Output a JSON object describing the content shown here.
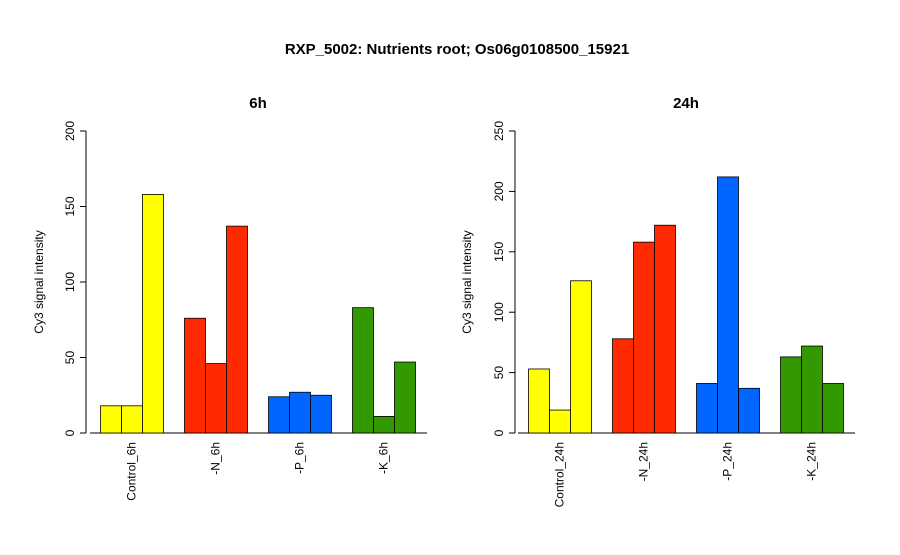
{
  "title": "RXP_5002: Nutrients root; Os06g0108500_15921",
  "chart_data": [
    {
      "type": "bar",
      "title": "6h",
      "ylabel": "Cy3 signal intensity",
      "ylim": [
        0,
        200
      ],
      "yticks": [
        0,
        50,
        100,
        150,
        200
      ],
      "categories": [
        "Control_6h",
        "-N_6h",
        "-P_6h",
        "-K_6h"
      ],
      "colors": [
        "#FFFF00",
        "#FF2A00",
        "#0066FF",
        "#339900"
      ],
      "values": [
        [
          18,
          18,
          158
        ],
        [
          76,
          46,
          137
        ],
        [
          24,
          27,
          25
        ],
        [
          83,
          11,
          47
        ]
      ]
    },
    {
      "type": "bar",
      "title": "24h",
      "ylabel": "Cy3 signal intensity",
      "ylim": [
        0,
        250
      ],
      "yticks": [
        0,
        50,
        100,
        150,
        200,
        250
      ],
      "categories": [
        "Control_24h",
        "-N_24h",
        "-P_24h",
        "-K_24h"
      ],
      "colors": [
        "#FFFF00",
        "#FF2A00",
        "#0066FF",
        "#339900"
      ],
      "values": [
        [
          53,
          19,
          126
        ],
        [
          78,
          158,
          172
        ],
        [
          41,
          212,
          37
        ],
        [
          63,
          72,
          41
        ]
      ]
    }
  ]
}
